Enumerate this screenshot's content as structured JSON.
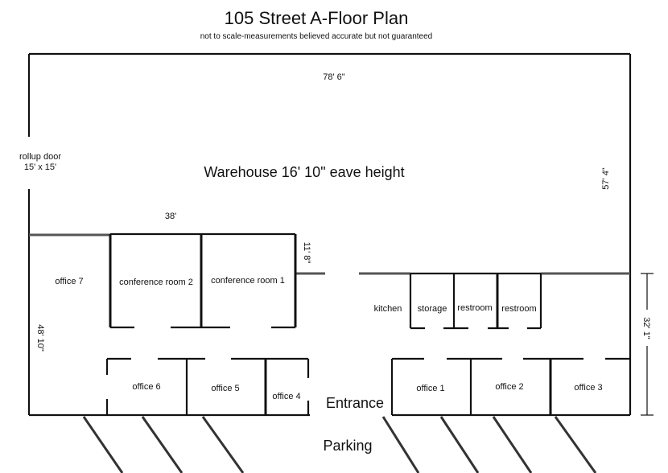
{
  "title": "105 Street A-Floor Plan",
  "subtitle": "not to scale-measurements believed accurate but not guaranteed",
  "warehouse": {
    "label": "Warehouse 16' 10\" eave height",
    "width_dim": "78' 6\"",
    "depth_dim": "57' 4\"",
    "rollup_door_line1": "rollup door",
    "rollup_door_line2": "15' x 15'"
  },
  "office_area": {
    "width_dim": "38'",
    "conf_depth_dim": "11' 8\"",
    "depth_dim": "48' 10\"",
    "right_depth_dim": "32' 1\""
  },
  "rooms": {
    "office_7": "office 7",
    "conference_room_2": "conference room 2",
    "conference_room_1": "conference room 1",
    "kitchen": "kitchen",
    "storage": "storage",
    "restroom_1": "restroom",
    "restroom_2": "restroom",
    "office_6": "office 6",
    "office_5": "office 5",
    "office_4": "office 4",
    "office_1": "office 1",
    "office_2": "office 2",
    "office_3": "office 3"
  },
  "entrance": "Entrance",
  "parking": "Parking"
}
